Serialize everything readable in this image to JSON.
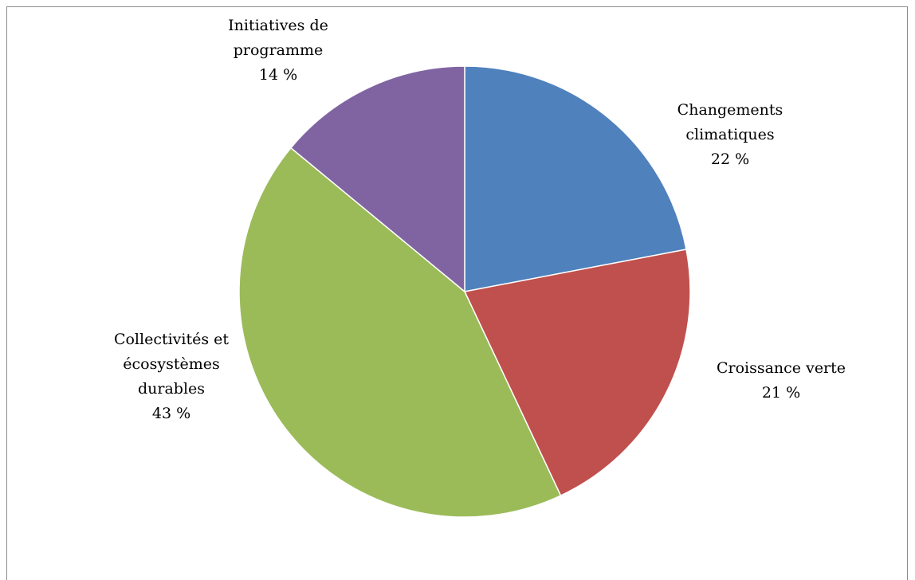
{
  "chart_data": {
    "type": "pie",
    "title": "",
    "start_angle_deg": 0,
    "direction": "clockwise",
    "slices": [
      {
        "key": "changements",
        "label_lines": [
          "Changements",
          "climatiques"
        ],
        "percent_label": "22 %",
        "value": 22,
        "color": "#4F81BD"
      },
      {
        "key": "croissance",
        "label_lines": [
          "Croissance verte"
        ],
        "percent_label": "21 %",
        "value": 21,
        "color": "#C0504D"
      },
      {
        "key": "collectivites",
        "label_lines": [
          "Collectivités et",
          "écosystèmes",
          "durables"
        ],
        "percent_label": "43 %",
        "value": 43,
        "color": "#9BBB59"
      },
      {
        "key": "initiatives",
        "label_lines": [
          "Initiatives de",
          "programme"
        ],
        "percent_label": "14 %",
        "value": 14,
        "color": "#8064A2"
      }
    ]
  }
}
